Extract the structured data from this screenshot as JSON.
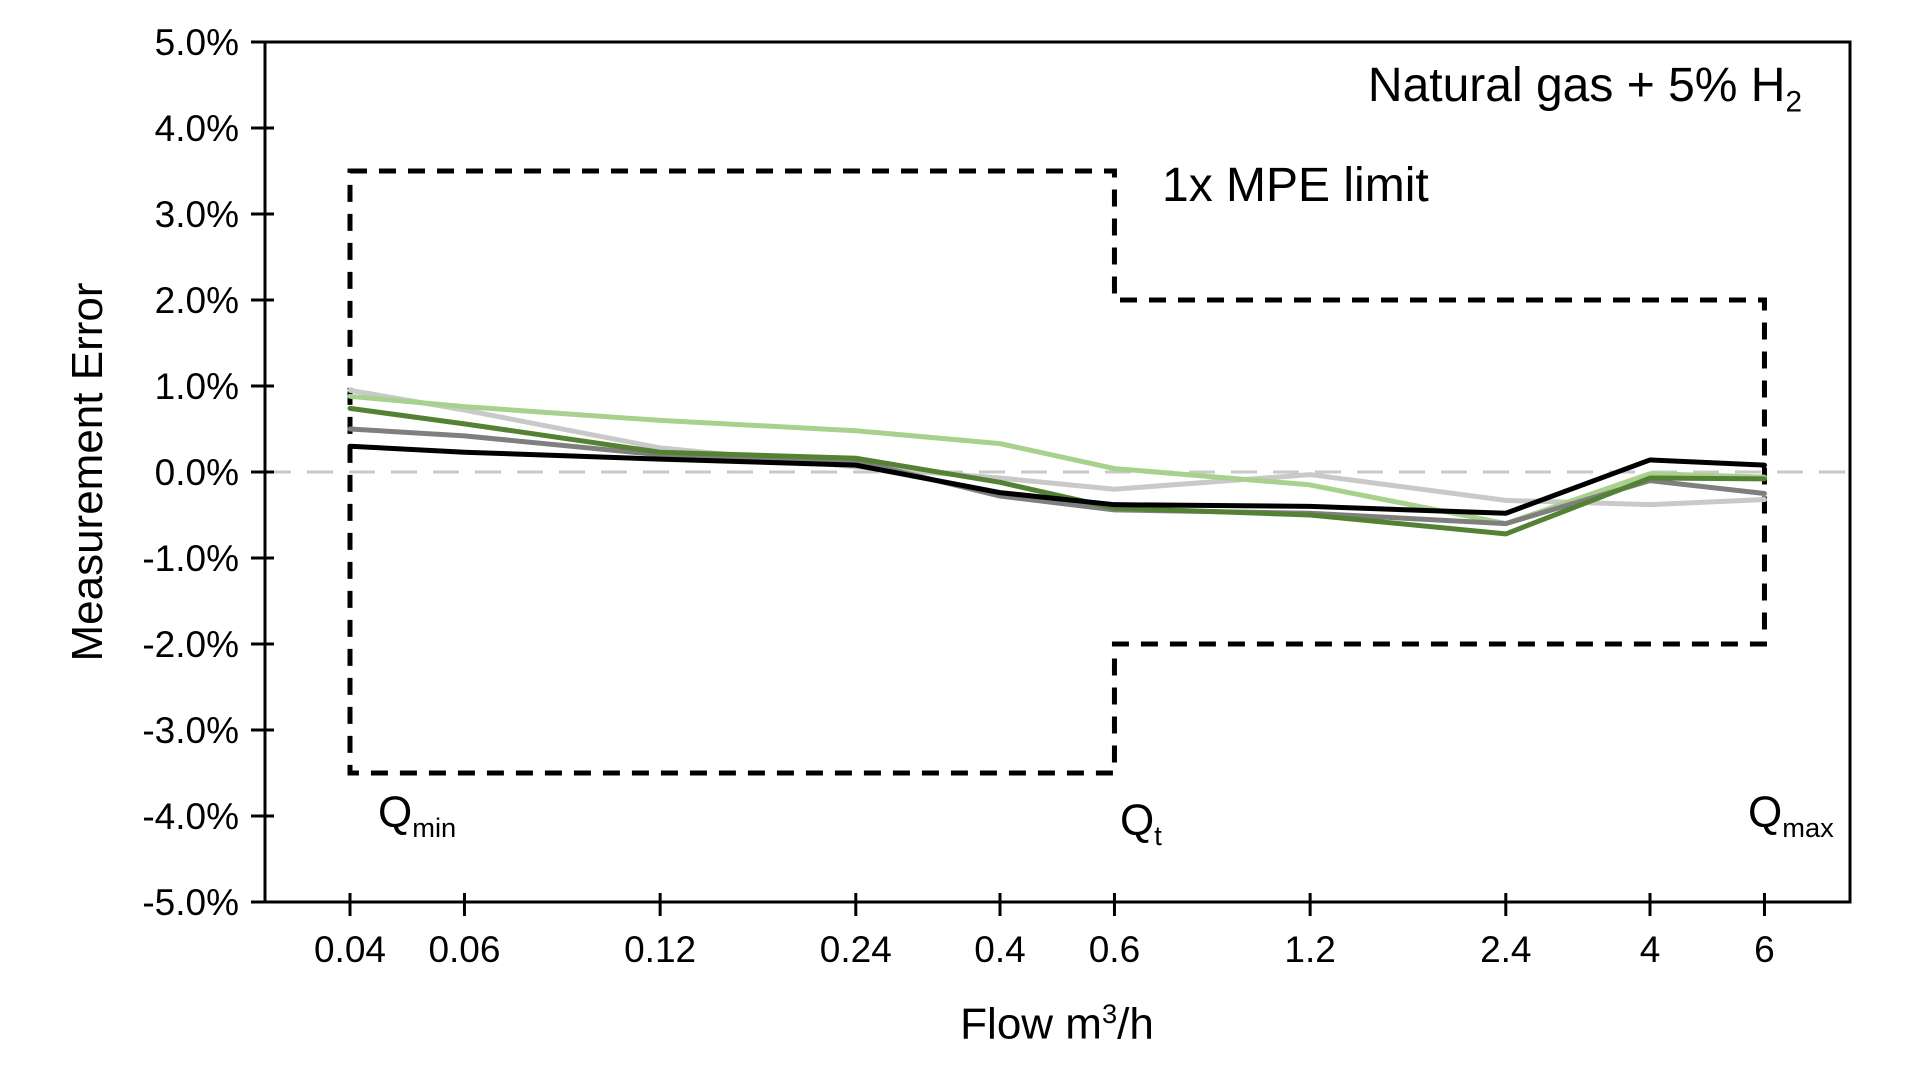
{
  "annotations": {
    "gas_mixture": {
      "text": "Natural gas + 5% H",
      "sub": "2"
    },
    "mpe_limit_label": "1x MPE limit"
  },
  "flow_markers": {
    "qmin": {
      "base": "Q",
      "sub": "min"
    },
    "qt": {
      "base": "Q",
      "sub": "t"
    },
    "qmax": {
      "base": "Q",
      "sub": "max"
    }
  },
  "axes": {
    "y_title": "Measurement Error",
    "x_title": {
      "base": "Flow m",
      "sup": "3",
      "suffix": "/h"
    }
  },
  "colors": {
    "axis": "#000000",
    "mpe_dash": "#000000",
    "zero_line": "#C9C9C9",
    "background": "#FFFFFF"
  },
  "chart_data": {
    "type": "line",
    "title": "Natural gas + 5% H2",
    "xlabel": "Flow m3/h",
    "ylabel": "Measurement Error",
    "x_scale": "log",
    "ylim": [
      -5,
      5
    ],
    "grid": false,
    "legend": false,
    "y_tick_values": [
      5,
      4,
      3,
      2,
      1,
      0,
      -1,
      -2,
      -3,
      -4,
      -5
    ],
    "y_tick_labels": [
      "5.0%",
      "4.0%",
      "3.0%",
      "2.0%",
      "1.0%",
      "0.0%",
      "-1.0%",
      "-2.0%",
      "-3.0%",
      "-4.0%",
      "-5.0%"
    ],
    "x_tick_values": [
      0.04,
      0.06,
      0.12,
      0.24,
      0.4,
      0.6,
      1.2,
      2.4,
      4,
      6
    ],
    "x_tick_labels": [
      "0.04",
      "0.06",
      "0.12",
      "0.24",
      "0.4",
      "0.6",
      "1.2",
      "2.4",
      "4",
      "6"
    ],
    "x": [
      0.04,
      0.06,
      0.12,
      0.24,
      0.4,
      0.6,
      1.2,
      2.4,
      4,
      6
    ],
    "series": [
      {
        "name": "light-gray",
        "color": "#C9C9C9",
        "values": [
          0.95,
          0.72,
          0.28,
          0.06,
          -0.07,
          -0.2,
          -0.03,
          -0.33,
          -0.38,
          -0.32
        ]
      },
      {
        "name": "light-green",
        "color": "#A9D18E",
        "values": [
          0.88,
          0.76,
          0.6,
          0.48,
          0.33,
          0.04,
          -0.15,
          -0.6,
          -0.02,
          -0.06
        ]
      },
      {
        "name": "gray",
        "color": "#7F7F7F",
        "values": [
          0.5,
          0.42,
          0.2,
          0.13,
          -0.28,
          -0.44,
          -0.48,
          -0.6,
          -0.1,
          -0.25
        ]
      },
      {
        "name": "dark-green",
        "color": "#548235",
        "values": [
          0.74,
          0.56,
          0.23,
          0.16,
          -0.12,
          -0.42,
          -0.5,
          -0.72,
          -0.07,
          -0.08
        ]
      },
      {
        "name": "black",
        "color": "#000000",
        "values": [
          0.3,
          0.23,
          0.15,
          0.08,
          -0.24,
          -0.38,
          -0.4,
          -0.48,
          0.14,
          0.08
        ]
      }
    ],
    "zero_line_pct": 0.0,
    "mpe_limit": {
      "label": "1x MPE limit",
      "qmin_flow": 0.04,
      "qt_flow": 0.6,
      "qmax_flow": 6,
      "low_zone_limit_pct": 3.5,
      "high_zone_limit_pct": 2.0
    }
  }
}
